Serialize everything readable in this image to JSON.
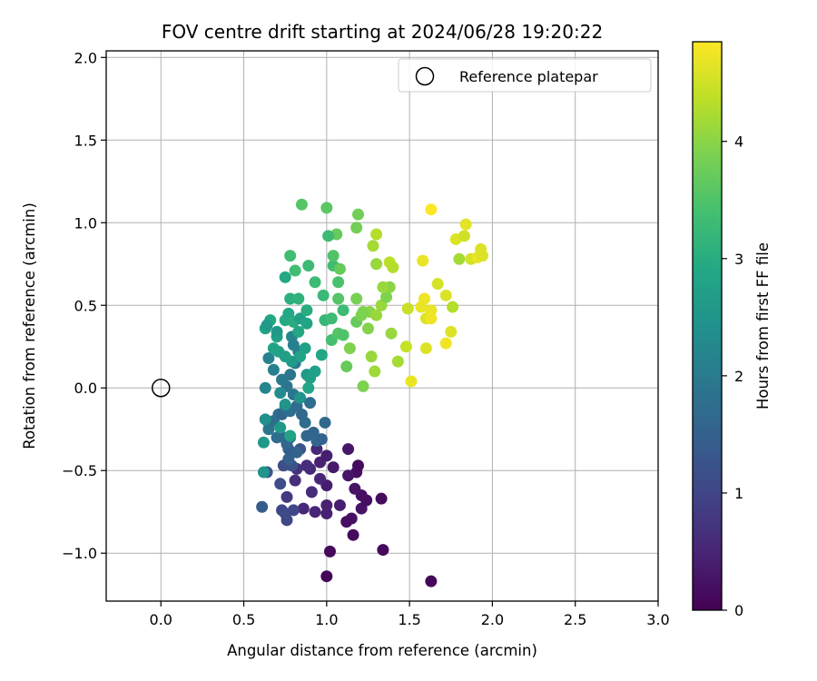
{
  "chart_data": {
    "type": "scatter",
    "title": "FOV centre drift starting at 2024/06/28 19:20:22",
    "xlabel": "Angular distance from reference (arcmin)",
    "ylabel": "Rotation from reference (arcmin)",
    "xlim": [
      -0.33,
      3.0
    ],
    "ylim": [
      -1.29,
      2.04
    ],
    "xticks": [
      "0.0",
      "0.5",
      "1.0",
      "1.5",
      "2.0",
      "2.5",
      "3.0"
    ],
    "yticks": [
      "−1.0",
      "−0.5",
      "0.0",
      "0.5",
      "1.0",
      "1.5",
      "2.0"
    ],
    "grid": true,
    "legend": {
      "placement": "top-right",
      "entries": [
        "Reference platepar"
      ]
    },
    "reference_point": {
      "x": 0.0,
      "y": 0.0,
      "name": "Reference platepar"
    },
    "colorbar": {
      "label": "Hours from first FF file",
      "ticks": [
        "0",
        "1",
        "2",
        "3",
        "4"
      ],
      "range": [
        0,
        4.85
      ],
      "colormap": "viridis"
    },
    "points": [
      [
        1.0,
        -1.14,
        0.05
      ],
      [
        1.63,
        -1.17,
        0.1
      ],
      [
        1.02,
        -0.99,
        0.1
      ],
      [
        1.34,
        -0.98,
        0.1
      ],
      [
        1.16,
        -0.89,
        0.15
      ],
      [
        1.12,
        -0.81,
        0.2
      ],
      [
        1.15,
        -0.79,
        0.2
      ],
      [
        1.21,
        -0.73,
        0.25
      ],
      [
        1.24,
        -0.68,
        0.2
      ],
      [
        1.33,
        -0.67,
        0.15
      ],
      [
        1.21,
        -0.65,
        0.2
      ],
      [
        1.17,
        -0.61,
        0.25
      ],
      [
        1.18,
        -0.51,
        0.2
      ],
      [
        1.19,
        -0.47,
        0.15
      ],
      [
        1.13,
        -0.53,
        0.3
      ],
      [
        1.13,
        -0.37,
        0.3
      ],
      [
        1.04,
        -0.48,
        0.35
      ],
      [
        1.0,
        -0.59,
        0.4
      ],
      [
        1.0,
        -0.76,
        0.45
      ],
      [
        1.0,
        -0.71,
        0.45
      ],
      [
        1.08,
        -0.71,
        0.4
      ],
      [
        0.93,
        -0.75,
        0.5
      ],
      [
        0.86,
        -0.73,
        0.55
      ],
      [
        0.91,
        -0.63,
        0.6
      ],
      [
        0.96,
        -0.55,
        0.5
      ],
      [
        0.96,
        -0.45,
        0.45
      ],
      [
        1.0,
        -0.41,
        0.4
      ],
      [
        0.94,
        -0.37,
        0.55
      ],
      [
        0.9,
        -0.49,
        0.55
      ],
      [
        0.88,
        -0.47,
        0.6
      ],
      [
        0.82,
        -0.49,
        0.7
      ],
      [
        0.81,
        -0.56,
        0.65
      ],
      [
        0.76,
        -0.66,
        0.8
      ],
      [
        0.76,
        -0.8,
        1.0
      ],
      [
        0.73,
        -0.74,
        1.0
      ],
      [
        0.75,
        -0.76,
        1.1
      ],
      [
        0.8,
        -0.74,
        1.0
      ],
      [
        0.72,
        -0.58,
        1.15
      ],
      [
        0.74,
        -0.47,
        1.15
      ],
      [
        0.64,
        -0.51,
        1.3
      ],
      [
        0.61,
        -0.72,
        1.4
      ],
      [
        0.79,
        -0.47,
        1.25
      ],
      [
        0.84,
        -0.37,
        1.25
      ],
      [
        0.77,
        -0.37,
        1.4
      ],
      [
        0.77,
        -0.43,
        1.45
      ],
      [
        0.76,
        -0.34,
        1.6
      ],
      [
        0.82,
        -0.39,
        1.55
      ],
      [
        0.78,
        -0.3,
        1.7
      ],
      [
        0.74,
        -0.3,
        1.65
      ],
      [
        0.7,
        -0.3,
        1.7
      ],
      [
        0.65,
        -0.25,
        1.9
      ],
      [
        0.65,
        -0.21,
        1.9
      ],
      [
        0.68,
        -0.2,
        1.75
      ],
      [
        0.71,
        -0.16,
        1.8
      ],
      [
        0.73,
        -0.16,
        1.6
      ],
      [
        0.75,
        -0.12,
        1.7
      ],
      [
        0.78,
        -0.14,
        1.75
      ],
      [
        0.82,
        -0.11,
        1.7
      ],
      [
        0.85,
        -0.16,
        1.65
      ],
      [
        0.87,
        -0.21,
        1.7
      ],
      [
        0.88,
        -0.29,
        1.6
      ],
      [
        0.92,
        -0.27,
        1.55
      ],
      [
        0.94,
        -0.32,
        1.6
      ],
      [
        0.97,
        -0.31,
        1.55
      ],
      [
        0.99,
        -0.21,
        1.65
      ],
      [
        0.9,
        -0.09,
        1.75
      ],
      [
        0.84,
        -0.06,
        1.85
      ],
      [
        0.8,
        -0.04,
        1.9
      ],
      [
        0.76,
        0.01,
        1.9
      ],
      [
        0.73,
        0.05,
        1.95
      ],
      [
        0.78,
        0.08,
        1.9
      ],
      [
        0.81,
        0.15,
        1.95
      ],
      [
        0.83,
        0.22,
        2.1
      ],
      [
        0.79,
        0.31,
        2.2
      ],
      [
        0.8,
        0.26,
        2.1
      ],
      [
        0.68,
        0.11,
        2.1
      ],
      [
        0.65,
        0.18,
        2.15
      ],
      [
        0.63,
        0.0,
        2.2
      ],
      [
        0.72,
        -0.03,
        2.3
      ],
      [
        0.75,
        -0.1,
        2.5
      ],
      [
        0.63,
        -0.19,
        2.4
      ],
      [
        0.62,
        -0.33,
        2.6
      ],
      [
        0.62,
        -0.51,
        2.5
      ],
      [
        0.72,
        -0.24,
        2.6
      ],
      [
        0.78,
        -0.29,
        2.8
      ],
      [
        0.84,
        -0.06,
        2.5
      ],
      [
        0.88,
        0.08,
        2.6
      ],
      [
        0.9,
        0.06,
        2.7
      ],
      [
        0.93,
        0.1,
        2.75
      ],
      [
        0.97,
        0.2,
        2.9
      ],
      [
        0.89,
        -0.0,
        2.85
      ],
      [
        0.87,
        0.24,
        2.75
      ],
      [
        0.84,
        0.19,
        2.8
      ],
      [
        0.79,
        0.16,
        2.6
      ],
      [
        0.75,
        0.19,
        2.7
      ],
      [
        0.71,
        0.22,
        2.75
      ],
      [
        0.68,
        0.24,
        2.8
      ],
      [
        0.7,
        0.31,
        2.75
      ],
      [
        0.63,
        0.36,
        2.8
      ],
      [
        0.66,
        0.41,
        2.9
      ],
      [
        0.64,
        0.38,
        2.6
      ],
      [
        0.7,
        0.34,
        2.6
      ],
      [
        0.75,
        0.41,
        2.95
      ],
      [
        0.77,
        0.45,
        2.9
      ],
      [
        0.8,
        0.4,
        3.0
      ],
      [
        0.84,
        0.42,
        2.75
      ],
      [
        0.88,
        0.39,
        2.85
      ],
      [
        0.83,
        0.34,
        2.9
      ],
      [
        0.88,
        0.47,
        3.0
      ],
      [
        0.78,
        0.54,
        3.05
      ],
      [
        0.83,
        0.54,
        3.1
      ],
      [
        0.75,
        0.67,
        2.9
      ],
      [
        0.89,
        0.74,
        3.3
      ],
      [
        0.81,
        0.71,
        3.35
      ],
      [
        0.78,
        0.8,
        3.35
      ],
      [
        0.85,
        1.11,
        3.55
      ],
      [
        0.93,
        0.64,
        3.3
      ],
      [
        0.98,
        0.56,
        3.25
      ],
      [
        0.99,
        0.41,
        3.2
      ],
      [
        1.03,
        0.42,
        3.3
      ],
      [
        1.03,
        0.29,
        3.4
      ],
      [
        1.07,
        0.33,
        3.55
      ],
      [
        1.1,
        0.32,
        3.5
      ],
      [
        1.1,
        0.47,
        3.3
      ],
      [
        1.07,
        0.54,
        3.55
      ],
      [
        1.07,
        0.64,
        3.45
      ],
      [
        1.04,
        0.74,
        3.35
      ],
      [
        1.04,
        0.8,
        3.5
      ],
      [
        1.08,
        0.72,
        3.7
      ],
      [
        1.06,
        0.93,
        3.7
      ],
      [
        1.01,
        0.92,
        3.3
      ],
      [
        1.0,
        1.09,
        3.6
      ],
      [
        1.18,
        0.97,
        3.8
      ],
      [
        1.19,
        1.05,
        3.8
      ],
      [
        1.18,
        0.54,
        3.85
      ],
      [
        1.18,
        0.4,
        3.7
      ],
      [
        1.21,
        0.44,
        3.9
      ],
      [
        1.26,
        0.46,
        4.0
      ],
      [
        1.3,
        0.44,
        4.1
      ],
      [
        1.33,
        0.5,
        4.1
      ],
      [
        1.36,
        0.55,
        3.9
      ],
      [
        1.38,
        0.61,
        4.0
      ],
      [
        1.34,
        0.61,
        4.1
      ],
      [
        1.3,
        0.75,
        4.1
      ],
      [
        1.28,
        0.86,
        4.2
      ],
      [
        1.3,
        0.93,
        4.3
      ],
      [
        1.38,
        0.76,
        4.35
      ],
      [
        1.4,
        0.73,
        4.3
      ],
      [
        1.25,
        0.36,
        3.95
      ],
      [
        1.22,
        0.46,
        3.9
      ],
      [
        1.14,
        0.24,
        3.9
      ],
      [
        1.12,
        0.13,
        3.7
      ],
      [
        1.22,
        0.01,
        3.9
      ],
      [
        1.27,
        0.19,
        4.1
      ],
      [
        1.29,
        0.1,
        4.15
      ],
      [
        1.39,
        0.33,
        4.1
      ],
      [
        1.43,
        0.16,
        4.2
      ],
      [
        1.49,
        0.48,
        4.45
      ],
      [
        1.48,
        0.25,
        4.45
      ],
      [
        1.51,
        0.04,
        4.7
      ],
      [
        1.58,
        0.77,
        4.7
      ],
      [
        1.59,
        0.54,
        4.75
      ],
      [
        1.57,
        0.49,
        4.7
      ],
      [
        1.6,
        0.42,
        4.6
      ],
      [
        1.6,
        0.24,
        4.6
      ],
      [
        1.63,
        0.47,
        4.7
      ],
      [
        1.63,
        0.42,
        4.75
      ],
      [
        1.63,
        1.08,
        4.85
      ],
      [
        1.67,
        0.63,
        4.55
      ],
      [
        1.72,
        0.56,
        4.6
      ],
      [
        1.72,
        0.27,
        4.75
      ],
      [
        1.75,
        0.34,
        4.6
      ],
      [
        1.76,
        0.49,
        4.3
      ],
      [
        1.78,
        0.9,
        4.6
      ],
      [
        1.8,
        0.78,
        4.2
      ],
      [
        1.83,
        0.92,
        4.5
      ],
      [
        1.84,
        0.99,
        4.65
      ],
      [
        1.87,
        0.78,
        4.55
      ],
      [
        1.91,
        0.79,
        4.7
      ],
      [
        1.93,
        0.84,
        4.6
      ],
      [
        1.94,
        0.8,
        4.6
      ]
    ]
  }
}
